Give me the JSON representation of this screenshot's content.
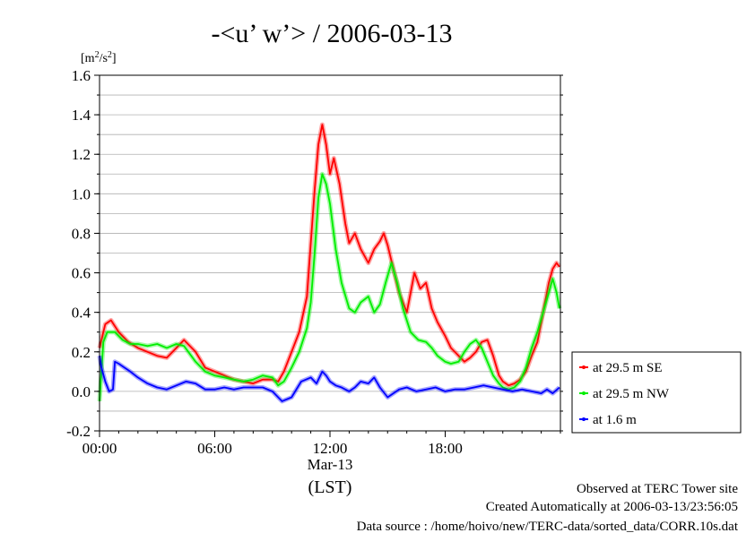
{
  "chart_data": {
    "type": "line",
    "title": "-<u’ w’> / 2006-03-13",
    "ylabel": "[m²/s²]",
    "date_label": "Mar-13",
    "time_zone_label": "(LST)",
    "xlim": [
      0,
      24
    ],
    "ylim": [
      -0.2,
      1.6
    ],
    "x_ticks": [
      {
        "value": 0,
        "label": "00:00"
      },
      {
        "value": 6,
        "label": "06:00"
      },
      {
        "value": 12,
        "label": "12:00"
      },
      {
        "value": 18,
        "label": "18:00"
      }
    ],
    "y_ticks": [
      {
        "value": -0.2,
        "label": "-0.2"
      },
      {
        "value": 0.0,
        "label": "0.0"
      },
      {
        "value": 0.2,
        "label": "0.2"
      },
      {
        "value": 0.4,
        "label": "0.4"
      },
      {
        "value": 0.6,
        "label": "0.6"
      },
      {
        "value": 0.8,
        "label": "0.8"
      },
      {
        "value": 1.0,
        "label": "1.0"
      },
      {
        "value": 1.2,
        "label": "1.2"
      },
      {
        "value": 1.4,
        "label": "1.4"
      },
      {
        "value": 1.6,
        "label": "1.6"
      }
    ],
    "grid": true,
    "legend_position": "right",
    "series": [
      {
        "name": "at 29.5 m SE",
        "color": "#ff0000",
        "x": [
          0,
          0.3,
          0.6,
          1.0,
          1.5,
          2.0,
          2.5,
          3.0,
          3.5,
          4.0,
          4.4,
          5.0,
          5.5,
          6.0,
          6.5,
          7.0,
          7.5,
          8.0,
          8.5,
          9.0,
          9.3,
          9.6,
          10.0,
          10.4,
          10.8,
          11.0,
          11.2,
          11.4,
          11.6,
          11.8,
          12.0,
          12.2,
          12.5,
          12.8,
          13.0,
          13.3,
          13.6,
          14.0,
          14.3,
          14.6,
          14.8,
          15.0,
          15.3,
          15.6,
          16.0,
          16.4,
          16.7,
          17.0,
          17.3,
          17.6,
          18.0,
          18.3,
          18.7,
          19.0,
          19.3,
          19.6,
          19.9,
          20.2,
          20.5,
          20.8,
          21.0,
          21.3,
          21.6,
          21.9,
          22.2,
          22.5,
          22.8,
          23.1,
          23.4,
          23.6,
          23.8,
          23.95
        ],
        "y": [
          0.22,
          0.34,
          0.36,
          0.3,
          0.25,
          0.22,
          0.2,
          0.18,
          0.17,
          0.22,
          0.26,
          0.2,
          0.12,
          0.1,
          0.08,
          0.06,
          0.05,
          0.04,
          0.06,
          0.06,
          0.05,
          0.1,
          0.2,
          0.3,
          0.48,
          0.75,
          1.02,
          1.25,
          1.35,
          1.25,
          1.1,
          1.18,
          1.05,
          0.85,
          0.75,
          0.8,
          0.72,
          0.65,
          0.72,
          0.76,
          0.8,
          0.74,
          0.62,
          0.5,
          0.4,
          0.6,
          0.52,
          0.55,
          0.42,
          0.35,
          0.28,
          0.22,
          0.18,
          0.15,
          0.17,
          0.2,
          0.25,
          0.26,
          0.18,
          0.08,
          0.05,
          0.03,
          0.04,
          0.06,
          0.1,
          0.18,
          0.25,
          0.4,
          0.55,
          0.62,
          0.65,
          0.63
        ]
      },
      {
        "name": "at 29.5 m NW",
        "color": "#00ee00",
        "x": [
          0,
          0.1,
          0.2,
          0.4,
          0.8,
          1.2,
          1.6,
          2.0,
          2.5,
          3.0,
          3.5,
          4.0,
          4.4,
          5.0,
          5.5,
          6.0,
          6.5,
          7.0,
          7.5,
          8.0,
          8.5,
          9.0,
          9.3,
          9.6,
          10.0,
          10.4,
          10.8,
          11.0,
          11.2,
          11.4,
          11.6,
          11.8,
          12.0,
          12.3,
          12.6,
          13.0,
          13.3,
          13.6,
          14.0,
          14.3,
          14.6,
          14.9,
          15.2,
          15.5,
          15.8,
          16.2,
          16.6,
          17.0,
          17.3,
          17.6,
          18.0,
          18.3,
          18.7,
          19.0,
          19.3,
          19.6,
          19.9,
          20.2,
          20.5,
          20.8,
          21.0,
          21.3,
          21.6,
          21.9,
          22.2,
          22.5,
          22.8,
          23.1,
          23.4,
          23.6,
          23.8,
          23.95
        ],
        "y": [
          -0.05,
          0.1,
          0.25,
          0.3,
          0.3,
          0.26,
          0.24,
          0.24,
          0.23,
          0.24,
          0.22,
          0.24,
          0.23,
          0.15,
          0.1,
          0.08,
          0.07,
          0.06,
          0.05,
          0.06,
          0.08,
          0.07,
          0.03,
          0.05,
          0.12,
          0.2,
          0.32,
          0.45,
          0.7,
          0.98,
          1.1,
          1.05,
          0.95,
          0.72,
          0.55,
          0.42,
          0.4,
          0.45,
          0.48,
          0.4,
          0.44,
          0.55,
          0.65,
          0.55,
          0.42,
          0.3,
          0.26,
          0.25,
          0.22,
          0.18,
          0.15,
          0.14,
          0.15,
          0.2,
          0.24,
          0.26,
          0.22,
          0.15,
          0.08,
          0.04,
          0.02,
          0.01,
          0.02,
          0.05,
          0.12,
          0.22,
          0.3,
          0.4,
          0.5,
          0.57,
          0.5,
          0.42
        ]
      },
      {
        "name": "at 1.6 m",
        "color": "#0000ff",
        "x": [
          0,
          0.1,
          0.3,
          0.5,
          0.7,
          0.8,
          1.0,
          1.3,
          1.6,
          2.0,
          2.5,
          3.0,
          3.5,
          4.0,
          4.5,
          5.0,
          5.5,
          6.0,
          6.5,
          7.0,
          7.5,
          8.0,
          8.5,
          9.0,
          9.5,
          10.0,
          10.5,
          11.0,
          11.3,
          11.6,
          11.8,
          12.0,
          12.3,
          12.6,
          13.0,
          13.3,
          13.6,
          14.0,
          14.3,
          14.6,
          15.0,
          15.3,
          15.6,
          16.0,
          16.5,
          17.0,
          17.5,
          18.0,
          18.5,
          19.0,
          19.5,
          20.0,
          20.5,
          21.0,
          21.5,
          22.0,
          22.5,
          23.0,
          23.3,
          23.6,
          23.95
        ],
        "y": [
          0.18,
          0.12,
          0.05,
          0.0,
          0.01,
          0.15,
          0.14,
          0.12,
          0.1,
          0.07,
          0.04,
          0.02,
          0.01,
          0.03,
          0.05,
          0.04,
          0.01,
          0.01,
          0.02,
          0.01,
          0.02,
          0.02,
          0.02,
          0.0,
          -0.05,
          -0.03,
          0.05,
          0.07,
          0.04,
          0.1,
          0.08,
          0.05,
          0.03,
          0.02,
          0.0,
          0.02,
          0.05,
          0.04,
          0.07,
          0.02,
          -0.03,
          -0.01,
          0.01,
          0.02,
          0.0,
          0.01,
          0.02,
          0.0,
          0.01,
          0.01,
          0.02,
          0.03,
          0.02,
          0.01,
          0.0,
          0.01,
          0.0,
          -0.01,
          0.01,
          -0.01,
          0.02
        ]
      }
    ]
  },
  "footer": {
    "line1": "Observed at TERC Tower site",
    "line2": "Created Automatically at 2006-03-13/23:56:05",
    "line3": "Data source : /home/hoivo/new/TERC-data/sorted_data/CORR.10s.dat"
  }
}
